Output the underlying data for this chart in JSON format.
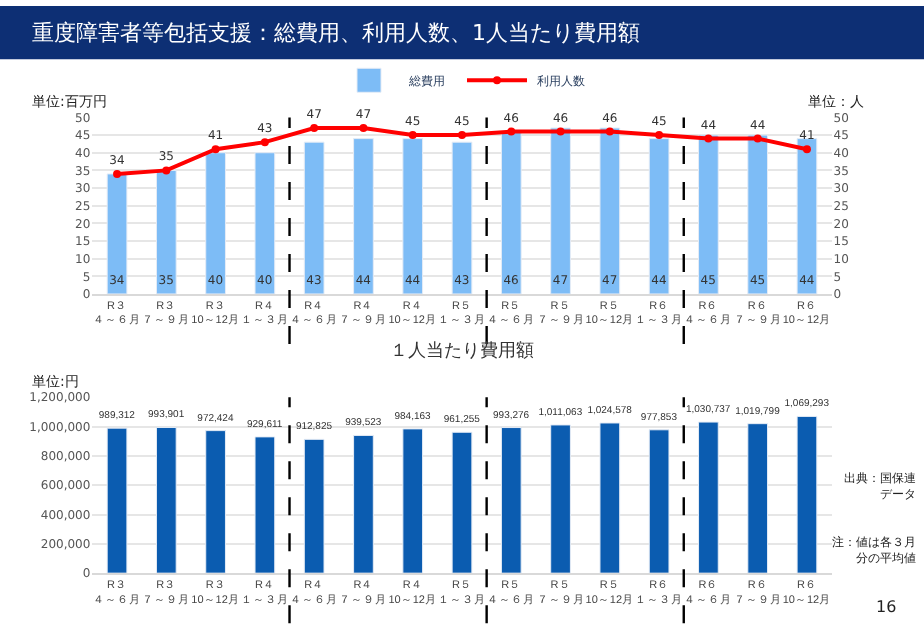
{
  "chart_data": [
    {
      "type": "bar",
      "title": "重度障害者等包括支援：総費用、利用人数、1人当たり費用額",
      "ylabel": "単位:百万円",
      "y2label": "単位：人",
      "categories": [
        "R３４～６月",
        "R３７～９月",
        "R３10～12月",
        "R４１～３月",
        "R４４～６月",
        "R４７～９月",
        "R４10～12月",
        "R５１～３月",
        "R５４～６月",
        "R５７～９月",
        "R５10～12月",
        "R６１～３月",
        "R６４～６月",
        "R６７～９月",
        "R６10～12月"
      ],
      "series": [
        {
          "name": "総費用",
          "type": "bar",
          "color": "#7dbcf6",
          "values": [
            34,
            35,
            40,
            40,
            43,
            44,
            44,
            43,
            46,
            47,
            47,
            44,
            45,
            45,
            44
          ]
        },
        {
          "name": "利用人数",
          "type": "line",
          "axis": "y2",
          "color": "#ff0000",
          "values": [
            34,
            35,
            41,
            43,
            47,
            47,
            45,
            45,
            46,
            46,
            46,
            45,
            44,
            44,
            41
          ]
        }
      ],
      "ylim": [
        0,
        50
      ],
      "yticks": [
        0,
        5,
        10,
        15,
        20,
        25,
        30,
        35,
        40,
        45,
        50
      ],
      "y2lim": [
        0,
        50
      ],
      "y2ticks": [
        0,
        5,
        10,
        15,
        20,
        25,
        30,
        35,
        40,
        45,
        50
      ],
      "grid": "y",
      "legend": "top",
      "marker": "circle",
      "data_labels": true
    },
    {
      "type": "bar",
      "title": "１人当たり費用額",
      "ylabel": "単位:円",
      "categories": [
        "R３４～６月",
        "R３７～９月",
        "R３10～12月",
        "R４１～３月",
        "R４４～６月",
        "R４７～９月",
        "R４10～12月",
        "R５１～３月",
        "R５４～６月",
        "R５７～９月",
        "R５10～12月",
        "R６１～３月",
        "R６４～６月",
        "R６７～９月",
        "R６10～12月"
      ],
      "values": [
        989312,
        993901,
        972424,
        929611,
        912825,
        939523,
        984163,
        961255,
        993276,
        1011063,
        1024578,
        977853,
        1030737,
        1019799,
        1069293
      ],
      "value_labels": [
        "989,312",
        "993,901",
        "972,424",
        "929,611",
        "912,825",
        "939,523",
        "984,163",
        "961,255",
        "993,276",
        "1,011,063",
        "1,024,578",
        "977,853",
        "1,030,737",
        "1,019,799",
        "1,069,293"
      ],
      "color": "#0b5cb0",
      "ylim": [
        0,
        1200000
      ],
      "yticks": [
        {
          "value": 0,
          "label": "0"
        },
        {
          "value": 200000,
          "label": "200,000"
        },
        {
          "value": 400000,
          "label": "400,000"
        },
        {
          "value": 600000,
          "label": "600,000"
        },
        {
          "value": 800000,
          "label": "800,000"
        },
        {
          "value": 1000000,
          "label": "1,000,000"
        },
        {
          "value": 1200000,
          "label": "1,200,000"
        }
      ],
      "grid": "y",
      "legend": false,
      "annotations": [
        "出典：国保連データ",
        "注：値は各３月分の平均値",
        "16"
      ]
    }
  ]
}
